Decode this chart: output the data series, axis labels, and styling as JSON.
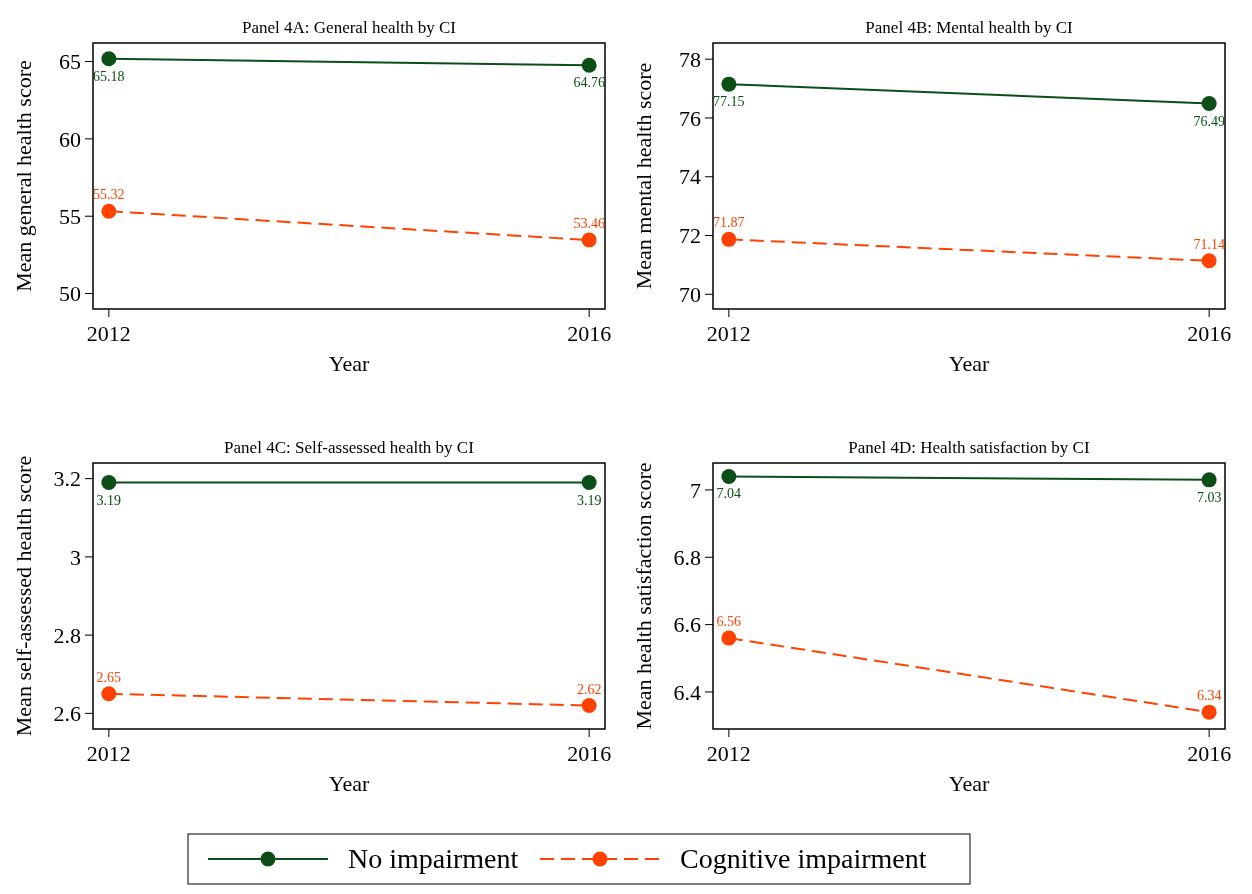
{
  "chart_data": [
    {
      "type": "line",
      "title": "Panel 4A: General health by CI",
      "xlabel": "Year",
      "ylabel": "Mean general health score",
      "categories": [
        "2012",
        "2016"
      ],
      "ylim": [
        49,
        66.2
      ],
      "yticks": [
        50,
        55,
        60,
        65
      ],
      "marker": "circle",
      "data_labels": true,
      "grid": false,
      "legend": "bottom",
      "series": [
        {
          "name": "No impairment",
          "color": "#0b4f16",
          "line_style": "solid",
          "values": [
            65.18,
            64.76
          ]
        },
        {
          "name": "Cognitive impairment",
          "color": "#ff4200",
          "line_style": "dashed",
          "values": [
            55.32,
            53.46
          ]
        }
      ]
    },
    {
      "type": "line",
      "title": "Panel 4B: Mental health by CI",
      "xlabel": "Year",
      "ylabel": "Mean mental health score",
      "categories": [
        "2012",
        "2016"
      ],
      "ylim": [
        69.5,
        78.55
      ],
      "yticks": [
        70,
        72,
        74,
        76,
        78
      ],
      "marker": "circle",
      "data_labels": true,
      "grid": false,
      "series": [
        {
          "color": "#0b4f16",
          "line_style": "solid",
          "values": [
            77.15,
            76.49
          ]
        },
        {
          "color": "#ff4200",
          "line_style": "dashed",
          "values": [
            71.87,
            71.14
          ]
        }
      ]
    },
    {
      "type": "line",
      "title": "Panel 4C: Self-assessed health by CI",
      "xlabel": "Year",
      "ylabel": "Mean self-assessed health score",
      "categories": [
        "2012",
        "2016"
      ],
      "ylim": [
        2.56,
        3.24
      ],
      "yticks": [
        2.6,
        2.8,
        3,
        3.2
      ],
      "marker": "circle",
      "data_labels": true,
      "grid": false,
      "series": [
        {
          "color": "#0b4f16",
          "line_style": "solid",
          "values": [
            3.19,
            3.19
          ]
        },
        {
          "color": "#ff4200",
          "line_style": "dashed",
          "values": [
            2.65,
            2.62
          ]
        }
      ]
    },
    {
      "type": "line",
      "title": "Panel 4D: Health satisfaction by CI",
      "xlabel": "Year",
      "ylabel": "Mean health satisfaction score",
      "categories": [
        "2012",
        "2016"
      ],
      "ylim": [
        6.29,
        7.08
      ],
      "yticks": [
        6.4,
        6.6,
        6.8,
        7
      ],
      "marker": "circle",
      "data_labels": true,
      "grid": false,
      "series": [
        {
          "color": "#0b4f16",
          "line_style": "solid",
          "values": [
            7.04,
            7.03
          ]
        },
        {
          "color": "#ff4200",
          "line_style": "dashed",
          "values": [
            6.56,
            6.34
          ]
        }
      ]
    }
  ]
}
